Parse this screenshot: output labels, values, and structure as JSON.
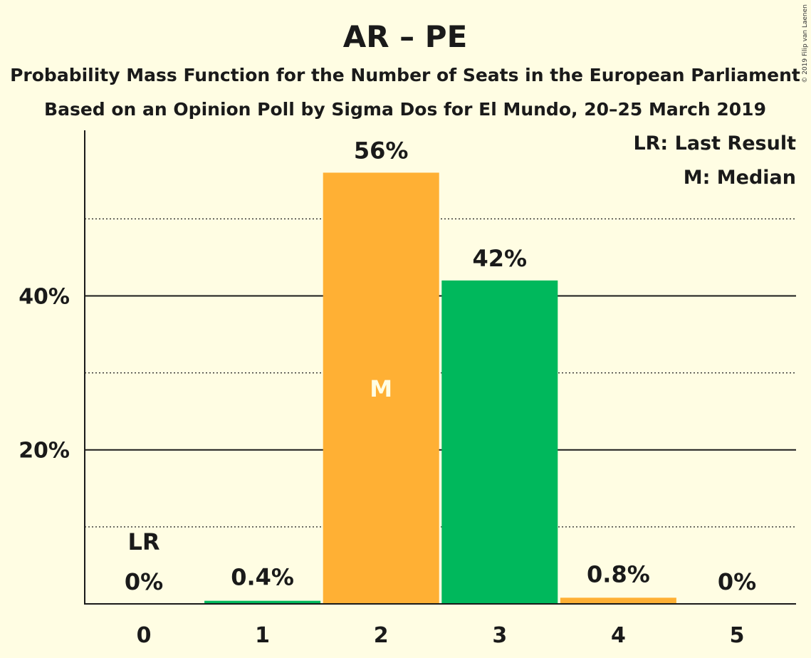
{
  "chart_data": {
    "type": "bar",
    "title": "AR – PE",
    "subtitle_1": "Probability Mass Function for the Number of Seats in the European Parliament",
    "subtitle_2": "Based on an Opinion Poll by Sigma Dos for El Mundo, 20–25 March 2019",
    "categories": [
      "0",
      "1",
      "2",
      "3",
      "4",
      "5"
    ],
    "values": [
      0,
      0.4,
      56,
      42,
      0.8,
      0
    ],
    "value_labels": [
      "0%",
      "0.4%",
      "56%",
      "42%",
      "0.8%",
      "0%"
    ],
    "bar_colors": [
      "#00B85C",
      "#00B85C",
      "#FFB034",
      "#00B85C",
      "#FFB034",
      "#00B85C"
    ],
    "y_ticks": [
      {
        "value": 20,
        "label": "20%"
      },
      {
        "value": 40,
        "label": "40%"
      }
    ],
    "dotted_gridlines": [
      10,
      30,
      50
    ],
    "ylim": [
      0,
      61.5
    ],
    "median_category": "2",
    "median_mark": "M",
    "last_result_category": "0",
    "last_result_mark": "LR",
    "legend": {
      "placement": "top-right",
      "items": [
        "LR: Last Result",
        "M: Median"
      ]
    },
    "copyright": "© 2019 Filip van Laenen",
    "xlabel": "",
    "ylabel": ""
  },
  "colors": {
    "background": "#FFFDE3",
    "green": "#00B85C",
    "orange": "#FFB034",
    "text": "#1a1a1a"
  }
}
